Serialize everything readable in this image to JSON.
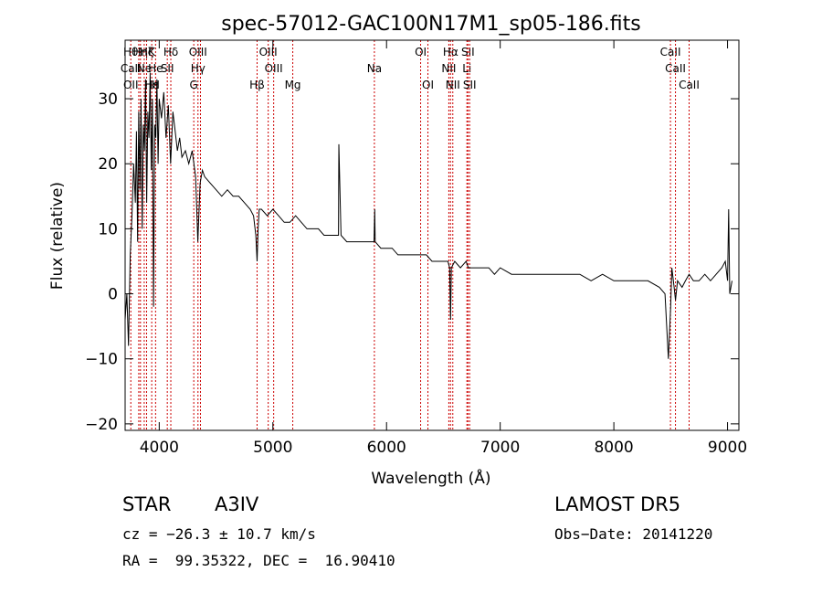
{
  "chart_data": {
    "type": "line",
    "title": "spec-57012-GAC100N17M1_sp05-186.fits",
    "xlabel": "Wavelength (Å)",
    "ylabel": "Flux (relative)",
    "xlim": [
      3700,
      9100
    ],
    "ylim": [
      -21,
      39
    ],
    "xticks": [
      4000,
      5000,
      6000,
      7000,
      8000,
      9000
    ],
    "yticks": [
      -20,
      -10,
      0,
      10,
      20,
      30
    ],
    "line_color": "#000000",
    "marker_color": "#cc0000",
    "grid": false,
    "series": [
      {
        "x": [
          3700,
          3715,
          3730,
          3745,
          3760,
          3775,
          3790,
          3800,
          3810,
          3820,
          3830,
          3840,
          3850,
          3860,
          3870,
          3880,
          3890,
          3900,
          3910,
          3920,
          3930,
          3940,
          3950,
          3960,
          3970,
          3980,
          3990,
          4000,
          4020,
          4040,
          4060,
          4080,
          4100,
          4120,
          4140,
          4160,
          4180,
          4200,
          4230,
          4260,
          4290,
          4320,
          4340,
          4360,
          4380,
          4400,
          4450,
          4500,
          4550,
          4600,
          4650,
          4700,
          4750,
          4800,
          4830,
          4850,
          4861,
          4870,
          4880,
          4900,
          4950,
          5000,
          5050,
          5100,
          5150,
          5200,
          5250,
          5300,
          5350,
          5400,
          5450,
          5500,
          5550,
          5577,
          5580,
          5600,
          5650,
          5700,
          5750,
          5800,
          5850,
          5890,
          5896,
          5900,
          5950,
          6000,
          6050,
          6100,
          6150,
          6200,
          6250,
          6300,
          6350,
          6400,
          6450,
          6500,
          6540,
          6555,
          6563,
          6570,
          6600,
          6650,
          6700,
          6720,
          6750,
          6800,
          6850,
          6900,
          6950,
          7000,
          7100,
          7200,
          7300,
          7400,
          7500,
          7600,
          7700,
          7800,
          7900,
          8000,
          8100,
          8200,
          8300,
          8400,
          8450,
          8480,
          8500,
          8510,
          8530,
          8542,
          8560,
          8600,
          8630,
          8662,
          8700,
          8750,
          8800,
          8850,
          8900,
          8950,
          8980,
          9000,
          9010,
          9020,
          9040
        ],
        "y": [
          -4,
          0,
          -8,
          6,
          12,
          20,
          14,
          25,
          8,
          28,
          16,
          30,
          10,
          26,
          22,
          33,
          14,
          28,
          24,
          34,
          19,
          30,
          -2,
          26,
          24,
          33,
          20,
          30,
          27,
          31,
          24,
          29,
          20,
          28,
          25,
          22,
          24,
          21,
          22,
          20,
          22,
          18,
          8,
          17,
          19,
          18,
          17,
          16,
          15,
          16,
          15,
          15,
          14,
          13,
          12,
          9,
          5,
          10,
          13,
          13,
          12,
          13,
          12,
          11,
          11,
          12,
          11,
          10,
          10,
          10,
          9,
          9,
          9,
          9,
          23,
          9,
          8,
          8,
          8,
          8,
          8,
          8,
          13,
          8,
          7,
          7,
          7,
          6,
          6,
          6,
          6,
          6,
          6,
          5,
          5,
          5,
          5,
          4,
          -4,
          4,
          5,
          4,
          5,
          4,
          4,
          4,
          4,
          4,
          3,
          4,
          3,
          3,
          3,
          3,
          3,
          3,
          3,
          2,
          3,
          2,
          2,
          2,
          2,
          1,
          0,
          -10,
          -2,
          4,
          1,
          -1,
          2,
          1,
          2,
          3,
          2,
          2,
          3,
          2,
          3,
          4,
          5,
          2,
          13,
          0,
          2
        ]
      }
    ],
    "markers": [
      {
        "x": 3750,
        "labels": [
          "Hθ",
          "CaII",
          "OII"
        ]
      },
      {
        "x": 3820,
        "labels": [
          "",
          "",
          ""
        ]
      },
      {
        "x": 3835,
        "labels": [
          "Hη",
          "",
          ""
        ]
      },
      {
        "x": 3868,
        "labels": [
          "",
          "Ne",
          ""
        ]
      },
      {
        "x": 3889,
        "labels": [
          "Hζ",
          "",
          ""
        ]
      },
      {
        "x": 3934,
        "labels": [
          "K",
          "",
          "Hε"
        ]
      },
      {
        "x": 3968,
        "labels": [
          "",
          "He",
          "H"
        ]
      },
      {
        "x": 4071,
        "labels": [
          "",
          "SII",
          ""
        ]
      },
      {
        "x": 4102,
        "labels": [
          "Hδ",
          "",
          ""
        ]
      },
      {
        "x": 4304,
        "labels": [
          "",
          "",
          "G"
        ]
      },
      {
        "x": 4341,
        "labels": [
          "OIII",
          "Hγ",
          ""
        ]
      },
      {
        "x": 4363,
        "labels": [
          "",
          "",
          ""
        ]
      },
      {
        "x": 4861,
        "labels": [
          "",
          "",
          "Hβ"
        ]
      },
      {
        "x": 4959,
        "labels": [
          "OIII",
          "",
          ""
        ]
      },
      {
        "x": 5007,
        "labels": [
          "",
          "OIII",
          ""
        ]
      },
      {
        "x": 5175,
        "labels": [
          "",
          "",
          "Mg"
        ]
      },
      {
        "x": 5893,
        "labels": [
          "",
          "Na",
          ""
        ]
      },
      {
        "x": 6300,
        "labels": [
          "OI",
          "",
          ""
        ]
      },
      {
        "x": 6364,
        "labels": [
          "",
          "",
          "OI"
        ]
      },
      {
        "x": 6548,
        "labels": [
          "",
          "NII",
          ""
        ]
      },
      {
        "x": 6563,
        "labels": [
          "Hα",
          "",
          ""
        ]
      },
      {
        "x": 6583,
        "labels": [
          "",
          "",
          "NII"
        ]
      },
      {
        "x": 6707,
        "labels": [
          "",
          "Li",
          ""
        ]
      },
      {
        "x": 6716,
        "labels": [
          "SII",
          "",
          ""
        ]
      },
      {
        "x": 6731,
        "labels": [
          "",
          "",
          "SII"
        ]
      },
      {
        "x": 8498,
        "labels": [
          "CaII",
          "",
          ""
        ]
      },
      {
        "x": 8542,
        "labels": [
          "",
          "CaII",
          ""
        ]
      },
      {
        "x": 8662,
        "labels": [
          "",
          "",
          "CaII"
        ]
      }
    ]
  },
  "info": {
    "class_label": "STAR",
    "subclass": "A3IV",
    "survey": "LAMOST DR5",
    "cz_text": "cz = −26.3 ± 10.7 km/s",
    "obs_date": "Obs−Date: 20141220",
    "radec": "RA =  99.35322, DEC =  16.90410"
  }
}
